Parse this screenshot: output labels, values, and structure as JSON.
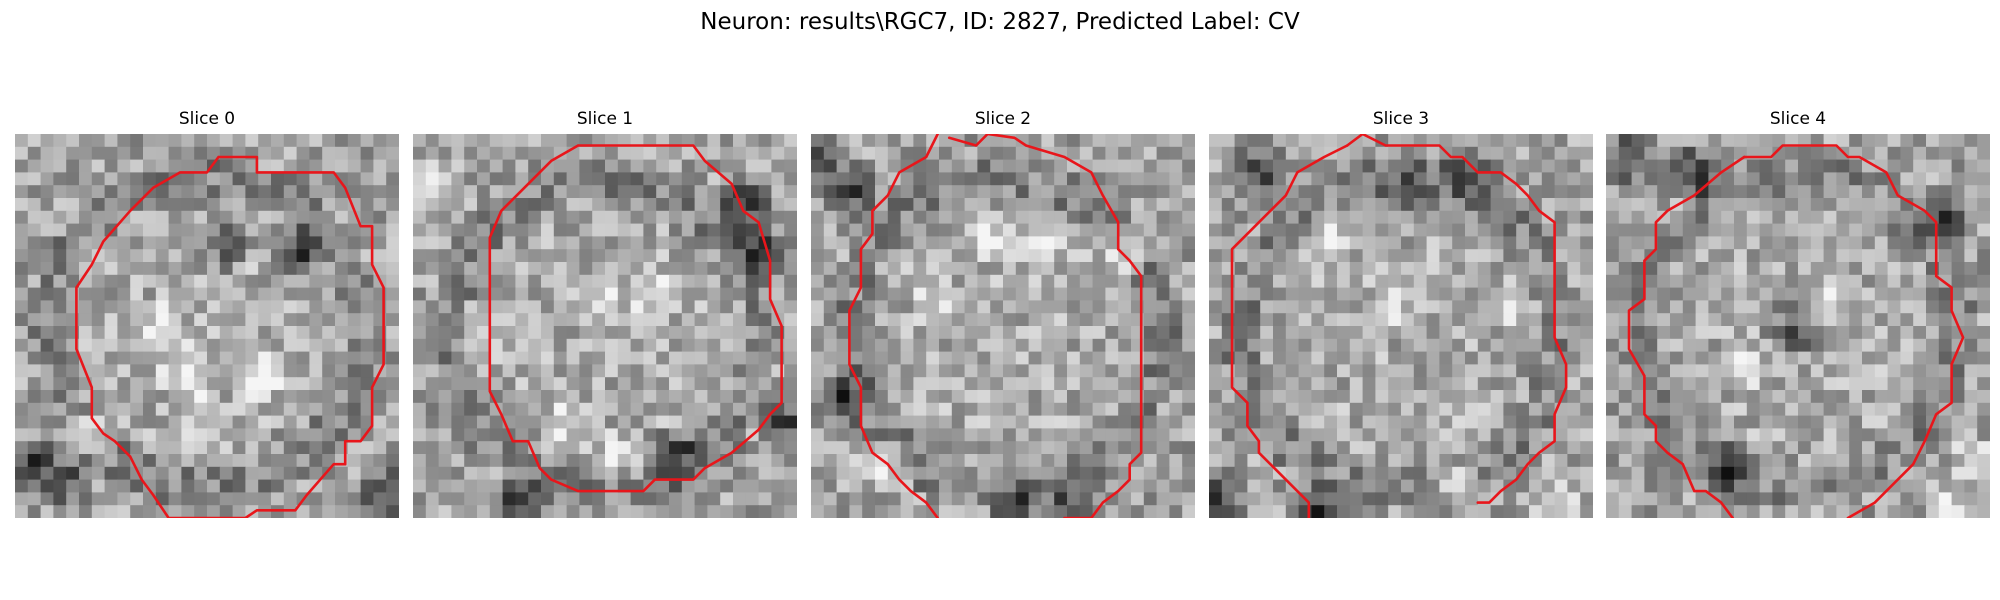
{
  "figure": {
    "title": "Neuron: results\\RGC7, ID: 2827, Predicted Label: CV"
  },
  "colors": {
    "contour": "#e8161b",
    "background": "#ffffff",
    "colormap": "grayscale"
  },
  "slices": [
    {
      "title": "Slice 0",
      "contour": [
        [
          5.3,
          0.6
        ],
        [
          6.3,
          0.6
        ],
        [
          6.3,
          1.0
        ],
        [
          7.3,
          1.0
        ],
        [
          8.3,
          1.0
        ],
        [
          8.6,
          1.4
        ],
        [
          9.0,
          2.4
        ],
        [
          9.3,
          2.4
        ],
        [
          9.3,
          3.4
        ],
        [
          9.6,
          4.0
        ],
        [
          9.6,
          5.0
        ],
        [
          9.6,
          6.0
        ],
        [
          9.3,
          6.6
        ],
        [
          9.3,
          7.6
        ],
        [
          9.0,
          8.0
        ],
        [
          8.6,
          8.0
        ],
        [
          8.6,
          8.6
        ],
        [
          8.3,
          8.6
        ],
        [
          7.6,
          9.4
        ],
        [
          7.3,
          9.8
        ],
        [
          7.0,
          9.8
        ],
        [
          6.3,
          9.8
        ],
        [
          6.0,
          10.0
        ],
        [
          5.3,
          10.0
        ],
        [
          4.6,
          10.0
        ],
        [
          4.0,
          10.0
        ],
        [
          3.6,
          9.4
        ],
        [
          3.3,
          9.0
        ],
        [
          3.0,
          8.4
        ],
        [
          2.6,
          8.0
        ],
        [
          2.3,
          7.8
        ],
        [
          2.0,
          7.4
        ],
        [
          2.0,
          6.6
        ],
        [
          1.6,
          5.6
        ],
        [
          1.6,
          5.0
        ],
        [
          1.6,
          4.0
        ],
        [
          2.0,
          3.4
        ],
        [
          2.3,
          2.8
        ],
        [
          3.0,
          2.0
        ],
        [
          3.6,
          1.4
        ],
        [
          4.3,
          1.0
        ],
        [
          5.0,
          1.0
        ],
        [
          5.3,
          0.6
        ]
      ],
      "dark_spots": [
        [
          5.5,
          2.8
        ],
        [
          7.5,
          3.0
        ],
        [
          0.6,
          8.6
        ],
        [
          1.2,
          9.0
        ],
        [
          9.7,
          9.4
        ]
      ],
      "bright_spots": [
        [
          3.7,
          5.0
        ],
        [
          4.3,
          6.1
        ],
        [
          2.0,
          7.7
        ],
        [
          4.8,
          7.2
        ],
        [
          6.4,
          6.3
        ]
      ]
    },
    {
      "title": "Slice 1",
      "contour": [
        [
          4.3,
          0.3
        ],
        [
          5.3,
          0.3
        ],
        [
          6.3,
          0.3
        ],
        [
          7.3,
          0.3
        ],
        [
          7.6,
          0.7
        ],
        [
          8.3,
          1.3
        ],
        [
          8.6,
          2.0
        ],
        [
          9.0,
          2.3
        ],
        [
          9.3,
          3.3
        ],
        [
          9.3,
          4.3
        ],
        [
          9.6,
          5.0
        ],
        [
          9.6,
          5.3
        ],
        [
          9.6,
          5.7
        ],
        [
          9.6,
          7.0
        ],
        [
          9.3,
          7.3
        ],
        [
          9.0,
          7.7
        ],
        [
          8.3,
          8.3
        ],
        [
          7.6,
          8.7
        ],
        [
          7.3,
          9.0
        ],
        [
          7.0,
          9.0
        ],
        [
          6.3,
          9.0
        ],
        [
          6.0,
          9.3
        ],
        [
          5.6,
          9.3
        ],
        [
          5.3,
          9.3
        ],
        [
          4.6,
          9.3
        ],
        [
          4.3,
          9.3
        ],
        [
          3.6,
          9.0
        ],
        [
          3.3,
          8.7
        ],
        [
          3.0,
          8.0
        ],
        [
          2.6,
          8.0
        ],
        [
          2.3,
          7.3
        ],
        [
          2.0,
          6.7
        ],
        [
          2.0,
          5.7
        ],
        [
          2.0,
          4.3
        ],
        [
          2.0,
          3.3
        ],
        [
          2.0,
          2.7
        ],
        [
          2.3,
          2.0
        ],
        [
          3.0,
          1.3
        ],
        [
          3.3,
          1.0
        ],
        [
          3.6,
          0.7
        ],
        [
          4.3,
          0.3
        ]
      ],
      "dark_spots": [
        [
          8.6,
          1.8
        ],
        [
          9.0,
          3.0
        ],
        [
          9.7,
          7.5
        ],
        [
          2.7,
          9.6
        ],
        [
          6.8,
          8.4
        ]
      ],
      "bright_spots": [
        [
          5.0,
          4.3
        ],
        [
          4.0,
          7.5
        ],
        [
          6.2,
          4.2
        ],
        [
          5.4,
          8.4
        ],
        [
          0.6,
          1.3
        ]
      ]
    },
    {
      "title": "Slice 2",
      "contour": [
        [
          3.6,
          0.1
        ],
        [
          4.3,
          0.3
        ],
        [
          4.6,
          0.0
        ],
        [
          5.3,
          0.1
        ],
        [
          5.6,
          0.3
        ],
        [
          6.6,
          0.6
        ],
        [
          7.3,
          1.0
        ],
        [
          7.6,
          1.6
        ],
        [
          8.0,
          2.3
        ],
        [
          8.0,
          3.0
        ],
        [
          8.3,
          3.3
        ],
        [
          8.6,
          3.7
        ],
        [
          8.6,
          5.0
        ],
        [
          8.6,
          6.0
        ],
        [
          8.6,
          6.8
        ],
        [
          8.6,
          8.3
        ],
        [
          8.3,
          8.6
        ],
        [
          8.3,
          9.0
        ],
        [
          8.0,
          9.3
        ],
        [
          7.6,
          9.6
        ],
        [
          7.3,
          10.0
        ],
        [
          6.6,
          10.0
        ]
      ],
      "contour_b": [
        [
          0.3,
          0.0
        ],
        [
          0.3,
          0.0
        ]
      ],
      "contour_left": [
        [
          3.3,
          0.0
        ],
        [
          3.0,
          0.6
        ],
        [
          2.3,
          1.0
        ],
        [
          2.0,
          1.6
        ],
        [
          1.6,
          2.0
        ],
        [
          1.6,
          2.6
        ],
        [
          1.3,
          3.0
        ],
        [
          1.3,
          3.7
        ],
        [
          1.3,
          4.0
        ],
        [
          1.0,
          4.6
        ],
        [
          1.0,
          5.3
        ],
        [
          1.0,
          6.0
        ],
        [
          1.3,
          6.6
        ],
        [
          1.3,
          7.6
        ],
        [
          1.6,
          8.3
        ],
        [
          2.0,
          8.6
        ],
        [
          2.3,
          9.0
        ],
        [
          2.6,
          9.3
        ],
        [
          3.0,
          9.6
        ],
        [
          3.3,
          10.0
        ]
      ],
      "dark_spots": [
        [
          0.3,
          0.5
        ],
        [
          1.0,
          1.5
        ],
        [
          0.9,
          6.9
        ],
        [
          7.0,
          9.7
        ],
        [
          5.4,
          9.8
        ]
      ],
      "bright_spots": [
        [
          6.0,
          2.6
        ],
        [
          8.2,
          3.0
        ],
        [
          3.3,
          4.4
        ],
        [
          1.8,
          8.6
        ],
        [
          4.7,
          2.8
        ]
      ]
    },
    {
      "title": "Slice 3",
      "contour": [
        [
          3.6,
          0.3
        ],
        [
          4.0,
          0.0
        ],
        [
          4.6,
          0.3
        ],
        [
          5.3,
          0.3
        ],
        [
          6.0,
          0.3
        ],
        [
          6.3,
          0.6
        ],
        [
          6.6,
          0.6
        ],
        [
          7.0,
          1.0
        ],
        [
          7.6,
          1.0
        ],
        [
          8.0,
          1.3
        ],
        [
          8.3,
          1.6
        ],
        [
          8.6,
          2.0
        ],
        [
          9.0,
          2.3
        ],
        [
          9.0,
          3.0
        ],
        [
          9.0,
          4.0
        ],
        [
          9.0,
          5.3
        ],
        [
          9.3,
          6.0
        ],
        [
          9.3,
          6.6
        ],
        [
          9.0,
          7.3
        ],
        [
          9.0,
          8.0
        ],
        [
          8.6,
          8.3
        ],
        [
          8.3,
          8.6
        ],
        [
          8.0,
          9.0
        ],
        [
          7.6,
          9.3
        ],
        [
          7.3,
          9.6
        ],
        [
          7.0,
          9.6
        ]
      ],
      "contour_left": [
        [
          3.6,
          0.3
        ],
        [
          3.0,
          0.6
        ],
        [
          2.3,
          1.0
        ],
        [
          2.0,
          1.6
        ],
        [
          1.6,
          2.0
        ],
        [
          1.3,
          2.3
        ],
        [
          1.0,
          2.6
        ],
        [
          0.6,
          3.0
        ],
        [
          0.6,
          4.3
        ],
        [
          0.6,
          5.3
        ],
        [
          0.6,
          6.3
        ],
        [
          0.6,
          6.6
        ],
        [
          1.0,
          7.0
        ],
        [
          1.0,
          7.6
        ],
        [
          1.3,
          8.0
        ],
        [
          1.3,
          8.3
        ],
        [
          1.6,
          8.6
        ],
        [
          2.0,
          9.0
        ],
        [
          2.3,
          9.3
        ],
        [
          2.6,
          9.6
        ],
        [
          2.6,
          10.0
        ]
      ],
      "dark_spots": [
        [
          1.3,
          1.0
        ],
        [
          5.3,
          1.6
        ],
        [
          6.7,
          1.0
        ],
        [
          0.3,
          9.4
        ],
        [
          2.8,
          9.8
        ]
      ],
      "bright_spots": [
        [
          8.0,
          4.3
        ],
        [
          4.7,
          4.7
        ],
        [
          3.0,
          2.7
        ],
        [
          9.0,
          9.7
        ],
        [
          6.3,
          9.0
        ]
      ]
    },
    {
      "title": "Slice 4",
      "contour": [
        [
          3.6,
          0.6
        ],
        [
          4.3,
          0.6
        ],
        [
          4.6,
          0.3
        ],
        [
          5.0,
          0.3
        ],
        [
          5.6,
          0.3
        ],
        [
          6.0,
          0.3
        ],
        [
          6.3,
          0.6
        ],
        [
          6.6,
          0.6
        ],
        [
          7.3,
          1.0
        ],
        [
          7.6,
          1.6
        ],
        [
          8.3,
          2.0
        ],
        [
          8.6,
          2.3
        ],
        [
          8.6,
          3.3
        ],
        [
          8.6,
          3.7
        ],
        [
          9.0,
          4.0
        ],
        [
          9.0,
          4.6
        ],
        [
          9.3,
          5.3
        ],
        [
          9.0,
          6.0
        ],
        [
          9.0,
          7.0
        ],
        [
          8.6,
          7.3
        ],
        [
          8.3,
          8.0
        ],
        [
          8.0,
          8.6
        ],
        [
          7.6,
          9.0
        ],
        [
          7.3,
          9.3
        ],
        [
          7.0,
          9.6
        ],
        [
          6.3,
          10.0
        ]
      ],
      "contour_left": [
        [
          3.6,
          0.6
        ],
        [
          3.0,
          1.0
        ],
        [
          2.3,
          1.6
        ],
        [
          1.6,
          2.0
        ],
        [
          1.3,
          2.3
        ],
        [
          1.3,
          3.0
        ],
        [
          1.0,
          3.3
        ],
        [
          1.0,
          4.3
        ],
        [
          0.6,
          4.6
        ],
        [
          0.6,
          5.6
        ],
        [
          1.0,
          6.3
        ],
        [
          1.0,
          7.3
        ],
        [
          1.3,
          7.6
        ],
        [
          1.3,
          8.0
        ],
        [
          1.6,
          8.3
        ],
        [
          2.0,
          8.6
        ],
        [
          2.3,
          9.3
        ],
        [
          2.6,
          9.3
        ],
        [
          3.0,
          9.6
        ],
        [
          3.3,
          10.0
        ]
      ],
      "dark_spots": [
        [
          2.3,
          1.0
        ],
        [
          0.6,
          0.6
        ],
        [
          8.7,
          2.3
        ],
        [
          4.9,
          5.1
        ],
        [
          3.2,
          8.7
        ]
      ],
      "bright_spots": [
        [
          8.9,
          9.6
        ],
        [
          9.6,
          8.5
        ],
        [
          3.6,
          6.1
        ],
        [
          5.9,
          4.3
        ],
        [
          6.9,
          1.8
        ]
      ]
    }
  ]
}
